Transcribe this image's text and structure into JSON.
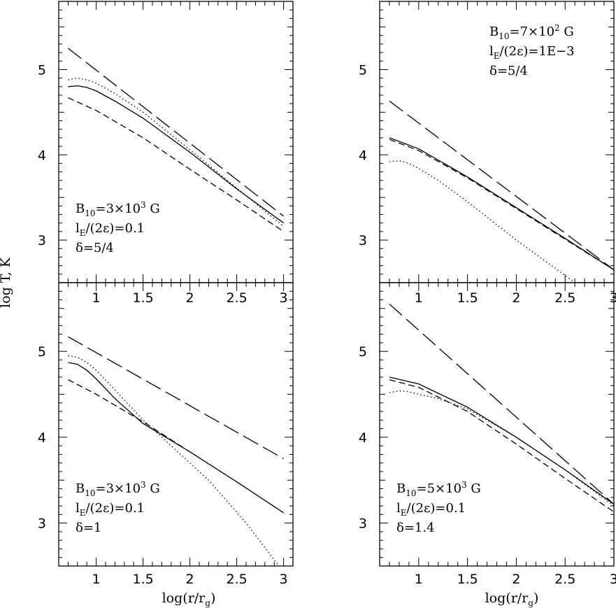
{
  "figure": {
    "ylabel": "log T, K",
    "xlabel": "log(r/r",
    "xlabel_sub": "g",
    "xlabel_end": ")"
  },
  "line_styles": {
    "solid": "solid",
    "dotted": "dotted",
    "short_dash": "short-dashed",
    "long_dash": "long-dashed"
  },
  "chart_data": [
    {
      "id": "top-left",
      "type": "line",
      "xlim": [
        0.6,
        3.1
      ],
      "ylim": [
        2.5,
        5.8
      ],
      "xticks": [
        1,
        1.5,
        2,
        2.5,
        3
      ],
      "xtick_labels": [
        "1",
        "1.5",
        "2",
        "2.5",
        "3"
      ],
      "yticks": [
        3,
        4,
        5
      ],
      "ytick_labels": [
        "3",
        "4",
        "5"
      ],
      "annotation": [
        "B",
        "10",
        "=3×10",
        "3",
        " G",
        "l",
        "E",
        "/(2ε)=0.1",
        "δ=5/4"
      ],
      "series": [
        {
          "style": "long_dash",
          "x": [
            0.7,
            3.0
          ],
          "y": [
            5.25,
            3.28
          ]
        },
        {
          "style": "dotted",
          "x": [
            0.7,
            0.8,
            0.9,
            1.0,
            1.2,
            1.5,
            2.0,
            2.5,
            3.0
          ],
          "y": [
            4.88,
            4.9,
            4.88,
            4.84,
            4.72,
            4.5,
            4.06,
            3.61,
            3.16
          ]
        },
        {
          "style": "solid",
          "x": [
            0.7,
            0.8,
            0.9,
            1.0,
            1.2,
            1.5,
            2.0,
            2.5,
            3.0
          ],
          "y": [
            4.8,
            4.81,
            4.79,
            4.75,
            4.63,
            4.43,
            4.03,
            3.6,
            3.2
          ]
        },
        {
          "style": "short_dash",
          "x": [
            0.7,
            1.0,
            1.5,
            2.0,
            2.5,
            3.0
          ],
          "y": [
            4.67,
            4.52,
            4.2,
            3.83,
            3.47,
            3.1
          ]
        }
      ]
    },
    {
      "id": "top-right",
      "type": "line",
      "xlim": [
        0.6,
        3.0
      ],
      "ylim": [
        2.5,
        5.8
      ],
      "xticks": [
        1,
        1.5,
        2,
        2.5,
        3
      ],
      "xtick_labels": [
        "1",
        "1.5",
        "2",
        "2.5",
        "3"
      ],
      "yticks": [
        3,
        4,
        5
      ],
      "ytick_labels": [
        "3",
        "4",
        "5"
      ],
      "annotation": [
        "B",
        "10",
        "=7×10",
        "2",
        " G",
        "l",
        "E",
        "/(2ε)=1E−3",
        "δ=5/4"
      ],
      "series": [
        {
          "style": "long_dash",
          "x": [
            0.7,
            3.0
          ],
          "y": [
            4.63,
            2.65
          ]
        },
        {
          "style": "solid",
          "x": [
            0.7,
            1.0,
            1.5,
            2.0,
            2.5,
            3.0
          ],
          "y": [
            4.2,
            4.07,
            3.74,
            3.38,
            3.02,
            2.65
          ]
        },
        {
          "style": "short_dash",
          "x": [
            0.7,
            1.0,
            1.5,
            2.0,
            2.5,
            3.0
          ],
          "y": [
            4.18,
            4.05,
            3.73,
            3.37,
            3.01,
            2.65
          ]
        },
        {
          "style": "dotted",
          "x": [
            0.7,
            0.8,
            0.9,
            1.0,
            1.2,
            1.5,
            2.0,
            2.3,
            2.6
          ],
          "y": [
            3.92,
            3.93,
            3.9,
            3.84,
            3.7,
            3.45,
            3.0,
            2.75,
            2.5
          ]
        }
      ]
    },
    {
      "id": "bottom-left",
      "type": "line",
      "xlim": [
        0.6,
        3.1
      ],
      "ylim": [
        2.5,
        5.8
      ],
      "xticks": [
        1,
        1.5,
        2,
        2.5,
        3
      ],
      "xtick_labels": [
        "1",
        "1.5",
        "2",
        "2.5",
        "3"
      ],
      "yticks": [
        3,
        4,
        5
      ],
      "ytick_labels": [
        "3",
        "4",
        "5"
      ],
      "annotation": [
        "B",
        "10",
        "=3×10",
        "3",
        " G",
        "l",
        "E",
        "/(2ε)=0.1",
        "δ=1"
      ],
      "series": [
        {
          "style": "long_dash",
          "x": [
            0.7,
            3.0
          ],
          "y": [
            5.17,
            3.75
          ]
        },
        {
          "style": "dotted",
          "x": [
            0.7,
            0.8,
            0.9,
            1.0,
            1.2,
            1.5,
            1.8,
            2.2,
            2.6,
            2.95
          ],
          "y": [
            4.95,
            4.93,
            4.87,
            4.78,
            4.55,
            4.2,
            3.9,
            3.5,
            3.0,
            2.5
          ]
        },
        {
          "style": "solid",
          "x": [
            0.7,
            0.8,
            0.9,
            1.0,
            1.2,
            1.5,
            2.0,
            2.5,
            3.0
          ],
          "y": [
            4.87,
            4.85,
            4.78,
            4.68,
            4.45,
            4.16,
            3.83,
            3.48,
            3.12
          ]
        },
        {
          "style": "short_dash",
          "x": [
            0.7,
            1.0,
            1.5,
            2.0
          ],
          "y": [
            4.67,
            4.5,
            4.18,
            3.83
          ]
        }
      ]
    },
    {
      "id": "bottom-right",
      "type": "line",
      "xlim": [
        0.6,
        3.0
      ],
      "ylim": [
        2.5,
        5.8
      ],
      "xticks": [
        1,
        1.5,
        2,
        2.5,
        3
      ],
      "xtick_labels": [
        "1",
        "1.5",
        "2",
        "2.5",
        "3"
      ],
      "yticks": [
        3,
        4,
        5
      ],
      "ytick_labels": [
        "3",
        "4",
        "5"
      ],
      "annotation": [
        "B",
        "10",
        "=5×10",
        "3",
        " G",
        "l",
        "E",
        "/(2ε)=0.1",
        "δ=1.4"
      ],
      "series": [
        {
          "style": "long_dash",
          "x": [
            0.7,
            3.0
          ],
          "y": [
            5.55,
            3.22
          ]
        },
        {
          "style": "solid",
          "x": [
            0.7,
            1.0,
            1.5,
            2.0,
            2.5,
            3.0
          ],
          "y": [
            4.7,
            4.62,
            4.35,
            4.0,
            3.62,
            3.22
          ]
        },
        {
          "style": "short_dash",
          "x": [
            0.7,
            1.0,
            1.5,
            2.0,
            2.5,
            3.0
          ],
          "y": [
            4.67,
            4.58,
            4.3,
            3.92,
            3.52,
            3.13
          ]
        },
        {
          "style": "dotted",
          "x": [
            0.7,
            0.8,
            0.9,
            1.0,
            1.2,
            1.5,
            2.0,
            2.5,
            3.0
          ],
          "y": [
            4.52,
            4.54,
            4.53,
            4.5,
            4.45,
            4.33,
            4.0,
            3.62,
            3.2
          ]
        }
      ]
    }
  ]
}
